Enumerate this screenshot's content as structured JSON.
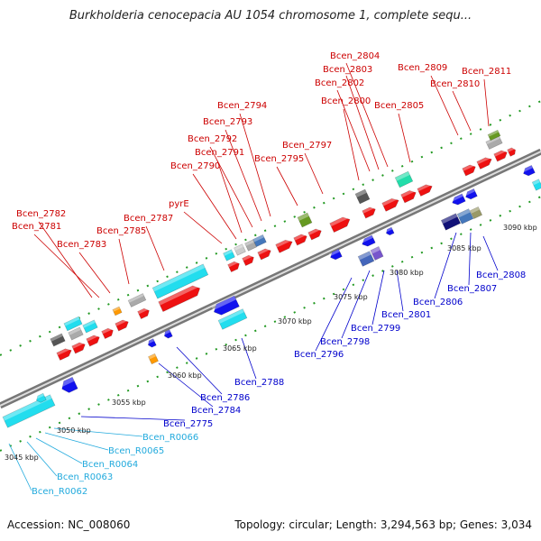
{
  "title": "Burkholderia cenocepacia AU 1054 chromosome 1, complete sequ...",
  "accession": "Accession: NC_008060",
  "topology": "Topology: circular; Length: 3,294,563 bp; Genes: 3,034",
  "colors": {
    "forward_label": "#cc0000",
    "reverse_label": "#0000cc",
    "rna_label": "#22aadd",
    "forward_gene": "#ee1111",
    "reverse_gene": "#1111ee"
  },
  "ticks": [
    "3045 kbp",
    "3050 kbp",
    "3055 kbp",
    "3060 kbp",
    "3065 kbp",
    "3070 kbp",
    "3075 kbp",
    "3080 kbp",
    "3085 kbp",
    "3090 kbp"
  ],
  "forward_labels": [
    "Bcen_2804",
    "Bcen_2803",
    "Bcen_2809",
    "Bcen_2811",
    "Bcen_2802",
    "Bcen_2810",
    "Bcen_2800",
    "Bcen_2805",
    "Bcen_2794",
    "Bcen_2793",
    "Bcen_2792",
    "Bcen_2791",
    "Bcen_2797",
    "Bcen_2795",
    "Bcen_2790",
    "pyrE",
    "Bcen_2782",
    "Bcen_2787",
    "Bcen_2781",
    "Bcen_2785",
    "Bcen_2783"
  ],
  "reverse_labels": [
    "Bcen_2808",
    "Bcen_2807",
    "Bcen_2806",
    "Bcen_2801",
    "Bcen_2799",
    "Bcen_2798",
    "Bcen_2796",
    "Bcen_2788",
    "Bcen_2786",
    "Bcen_2784",
    "Bcen_2775"
  ],
  "rna_labels": [
    "Bcen_R0066",
    "Bcen_R0065",
    "Bcen_R0064",
    "Bcen_R0063",
    "Bcen_R0062"
  ]
}
